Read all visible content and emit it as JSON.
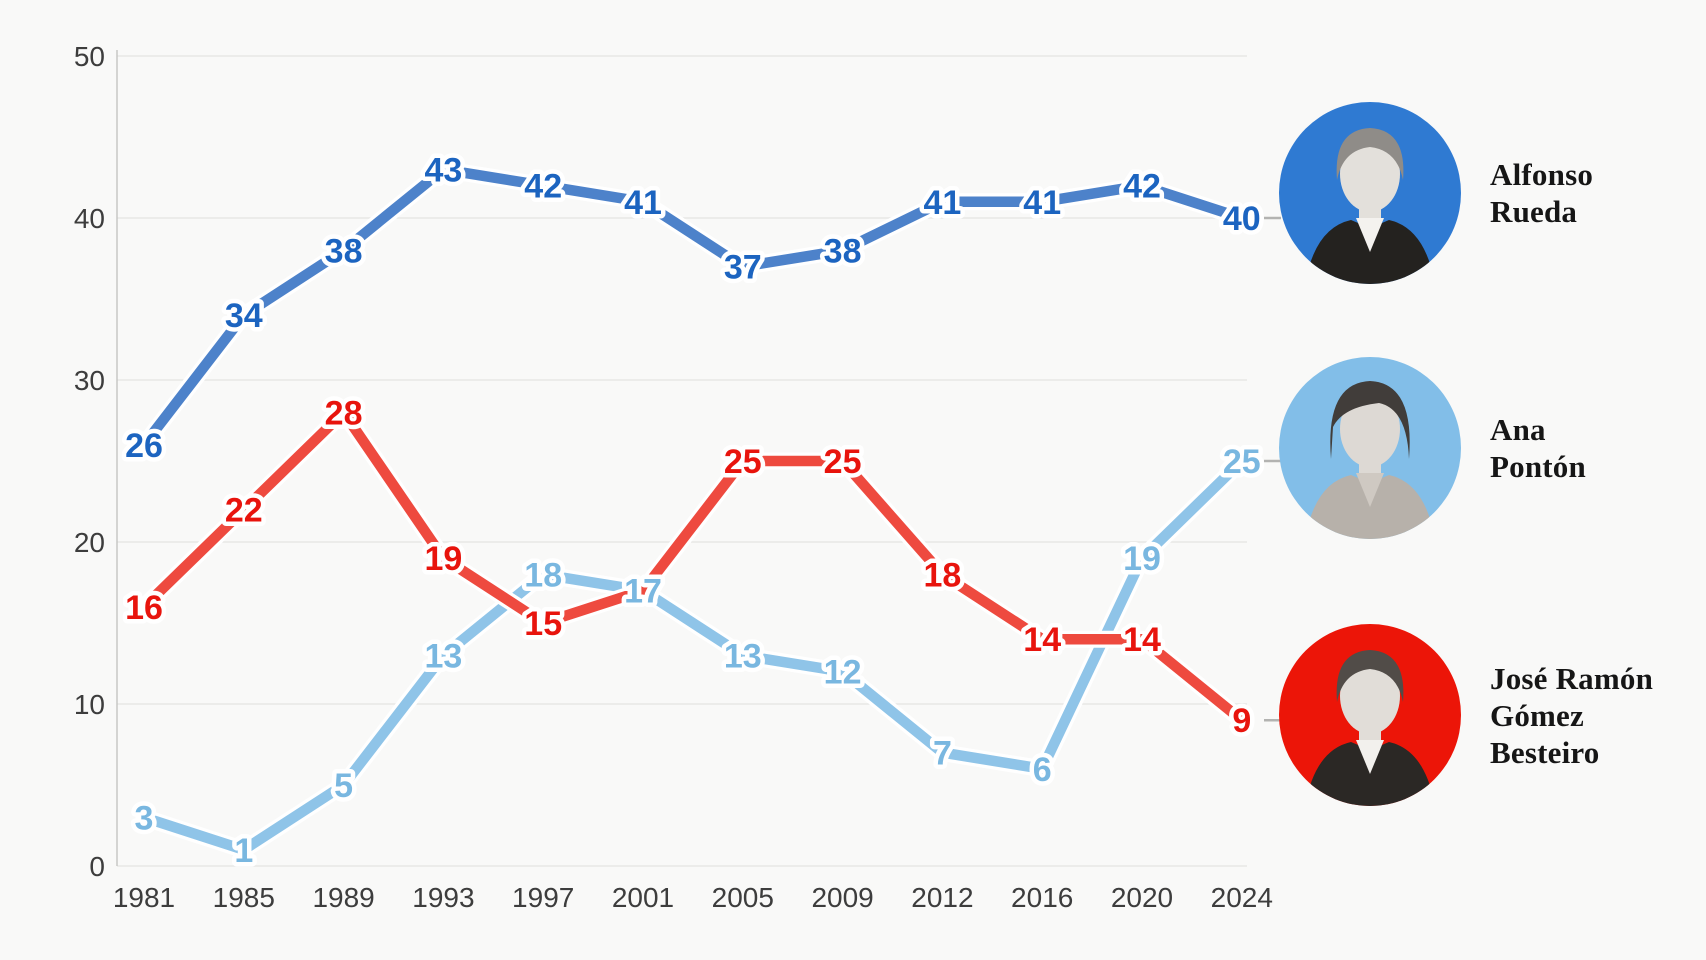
{
  "chart_data": {
    "type": "line",
    "x_labels": [
      "1981",
      "1985",
      "1989",
      "1993",
      "1997",
      "2001",
      "2005",
      "2009",
      "2012",
      "2016",
      "2020",
      "2024"
    ],
    "yticks": [
      0,
      10,
      20,
      30,
      40,
      50
    ],
    "ylim": [
      0,
      50
    ],
    "grid": true,
    "legend_position": "right",
    "series": [
      {
        "name": "Ana Pontón",
        "line_color": "#8fc4e8",
        "label_color": "#79b7e0",
        "values": [
          3,
          1,
          5,
          13,
          18,
          17,
          13,
          12,
          7,
          6,
          19,
          25
        ]
      },
      {
        "name": "José Ramón Gómez Besteiro",
        "line_color": "#ee4a3f",
        "label_color": "#e8140d",
        "values": [
          16,
          22,
          28,
          19,
          15,
          17,
          25,
          25,
          18,
          14,
          14,
          9
        ]
      },
      {
        "name": "Alfonso Rueda",
        "line_color": "#4d82ca",
        "label_color": "#1c64c0",
        "values": [
          26,
          34,
          38,
          43,
          42,
          41,
          37,
          38,
          41,
          41,
          42,
          40
        ]
      }
    ]
  },
  "legend": {
    "people": [
      {
        "line1": "Alfonso",
        "line2": "Rueda",
        "avatar_color": "#2f7ad2",
        "final_value": "40"
      },
      {
        "line1": "Ana",
        "line2": "Pontón",
        "avatar_color": "#82bee8",
        "final_value": "25"
      },
      {
        "line1": "José Ramón",
        "line2": "Gómez",
        "line3": "Besteiro",
        "avatar_color": "#ec1508",
        "final_value": "9"
      }
    ]
  }
}
